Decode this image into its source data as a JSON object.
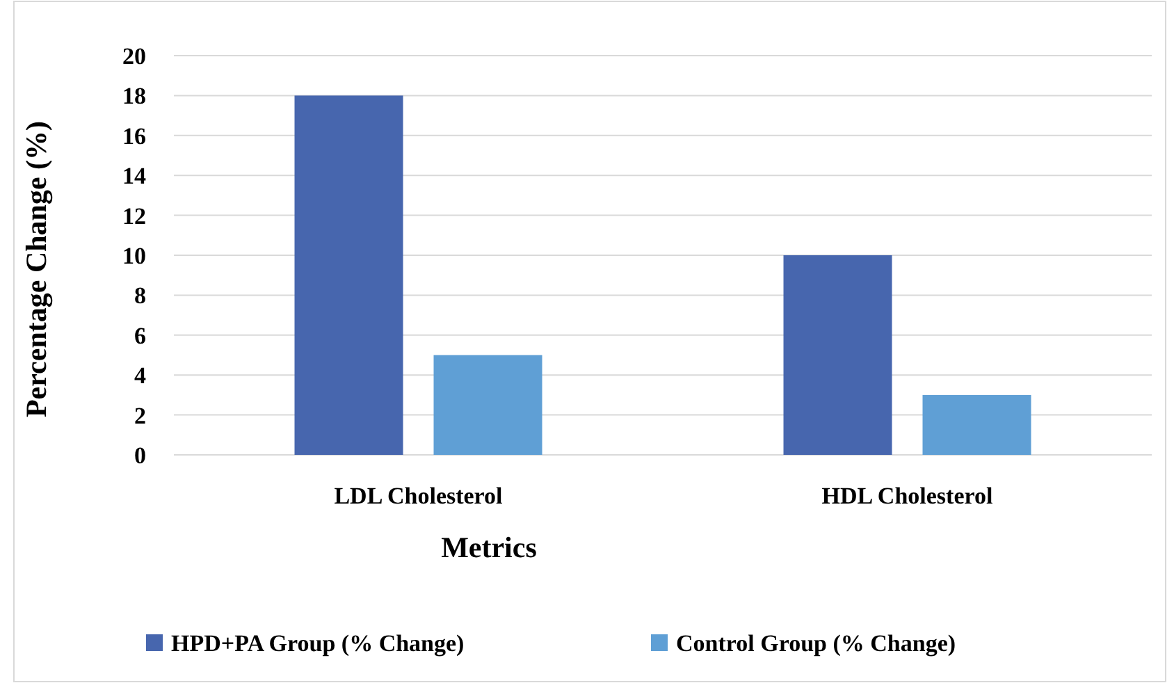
{
  "chart_data": {
    "type": "bar",
    "xlabel": "Metrics",
    "ylabel": "Percentage Change (%)",
    "categories": [
      "LDL Cholesterol",
      "HDL Cholesterol"
    ],
    "series": [
      {
        "name": "HPD+PA Group (% Change)",
        "color": "#4766ae",
        "values": [
          18,
          10
        ]
      },
      {
        "name": "Control Group (% Change)",
        "color": "#5f9fd5",
        "values": [
          5,
          3
        ]
      }
    ],
    "ylim": [
      0,
      20
    ],
    "yticks": [
      0,
      2,
      4,
      6,
      8,
      10,
      12,
      14,
      16,
      18,
      20
    ],
    "grid": "y",
    "legend": "bottom"
  }
}
